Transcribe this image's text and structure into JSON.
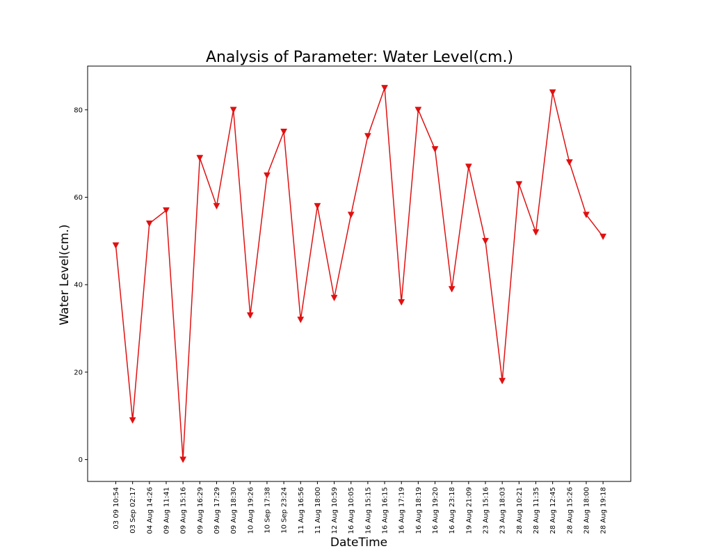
{
  "chart_data": {
    "type": "line",
    "title": "Analysis of Parameter: Water Level(cm.)",
    "xlabel": "DateTime",
    "ylabel": "Water Level(cm.)",
    "ylim": [
      -5,
      90
    ],
    "yticks": [
      0,
      20,
      40,
      60,
      80
    ],
    "grid": false,
    "marker": "triangle-down",
    "line_color": "#e01010",
    "categories": [
      "03 09 10:54",
      "03 Sep 02:17",
      "04 Aug 14:26",
      "09 Aug 11:41",
      "09 Aug 15:16",
      "09 Aug 16:29",
      "09 Aug 17:29",
      "09 Aug 18:30",
      "10 Aug 19:26",
      "10 Sep 17:38",
      "10 Sep 23:24",
      "11 Aug 16:56",
      "11 Aug 18:00",
      "12 Aug 10:59",
      "16 Aug 10:05",
      "16 Aug 15:15",
      "16 Aug 16:15",
      "16 Aug 17:19",
      "16 Aug 18:19",
      "16 Aug 19:20",
      "16 Aug 23:18",
      "19 Aug 21:09",
      "23 Aug 15:16",
      "23 Aug 18:03",
      "28 Aug 10:21",
      "28 Aug 11:35",
      "28 Aug 12:45",
      "28 Aug 15:26",
      "28 Aug 18:00",
      "28 Aug 19:18"
    ],
    "series": [
      {
        "values": [
          49,
          9,
          54,
          57,
          0,
          69,
          58,
          80,
          33,
          65,
          75,
          32,
          58,
          37,
          56,
          74,
          85,
          36,
          80,
          71,
          39,
          67,
          50,
          18,
          63,
          52,
          84,
          68,
          56,
          51
        ]
      }
    ]
  }
}
